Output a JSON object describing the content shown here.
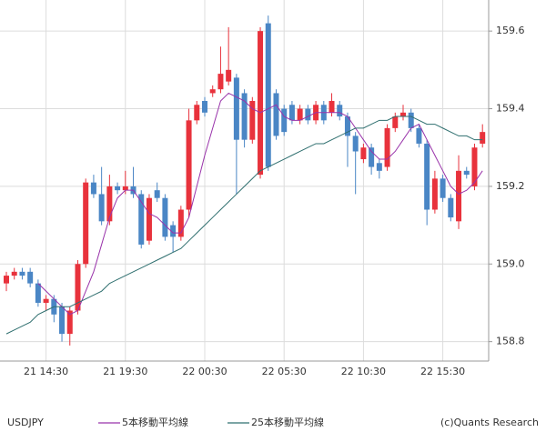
{
  "chart_data": {
    "type": "candlestick",
    "symbol": "USDJPY",
    "credit": "(c)Quants Research",
    "categories": [
      null,
      null,
      null,
      null,
      null,
      "21 14:30",
      null,
      null,
      null,
      null,
      null,
      null,
      null,
      null,
      null,
      "21 19:30",
      null,
      null,
      null,
      null,
      null,
      null,
      null,
      null,
      null,
      "22 00:30",
      null,
      null,
      null,
      null,
      null,
      null,
      null,
      null,
      null,
      "22 05:30",
      null,
      null,
      null,
      null,
      null,
      null,
      null,
      null,
      null,
      "22 10:30",
      null,
      null,
      null,
      null,
      null,
      null,
      null,
      null,
      null,
      "22 15:30",
      null,
      null,
      null,
      null,
      null
    ],
    "open": [
      158.95,
      158.97,
      158.98,
      158.98,
      158.95,
      158.9,
      158.91,
      158.89,
      158.82,
      158.88,
      159.0,
      159.21,
      159.18,
      159.11,
      159.2,
      159.19,
      159.2,
      159.18,
      159.06,
      159.19,
      159.17,
      159.1,
      159.07,
      159.14,
      159.37,
      159.42,
      159.44,
      159.45,
      159.47,
      159.48,
      159.44,
      159.32,
      159.23,
      159.62,
      159.44,
      159.4,
      159.41,
      159.37,
      159.4,
      159.37,
      159.41,
      159.39,
      159.41,
      159.38,
      159.33,
      159.27,
      159.3,
      159.26,
      159.25,
      159.35,
      159.38,
      159.39,
      159.35,
      159.31,
      159.14,
      159.22,
      159.17,
      159.11,
      159.24,
      159.2,
      159.31
    ],
    "high": [
      158.98,
      158.99,
      158.99,
      158.99,
      158.96,
      158.92,
      158.92,
      158.9,
      158.89,
      159.01,
      159.22,
      159.23,
      159.25,
      159.23,
      159.21,
      159.24,
      159.25,
      159.19,
      159.18,
      159.21,
      159.18,
      159.11,
      159.15,
      159.4,
      159.42,
      159.43,
      159.46,
      159.56,
      159.61,
      159.49,
      159.45,
      159.43,
      159.61,
      159.64,
      159.45,
      159.41,
      159.42,
      159.41,
      159.41,
      159.42,
      159.42,
      159.44,
      159.42,
      159.39,
      159.34,
      159.31,
      159.31,
      159.27,
      159.36,
      159.39,
      159.41,
      159.4,
      159.36,
      159.32,
      159.24,
      159.23,
      159.18,
      159.28,
      159.25,
      159.31,
      159.36
    ],
    "low": [
      158.93,
      158.96,
      158.96,
      158.94,
      158.89,
      158.88,
      158.85,
      158.8,
      158.79,
      158.87,
      158.99,
      159.17,
      159.1,
      159.1,
      159.18,
      159.18,
      159.17,
      159.04,
      159.05,
      159.16,
      159.06,
      159.03,
      159.06,
      159.12,
      159.36,
      159.38,
      159.43,
      159.44,
      159.46,
      159.18,
      159.3,
      159.31,
      159.22,
      159.24,
      159.32,
      159.33,
      159.36,
      159.36,
      159.36,
      159.36,
      159.36,
      159.38,
      159.37,
      159.25,
      159.18,
      159.26,
      159.23,
      159.22,
      159.24,
      159.34,
      159.37,
      159.34,
      159.3,
      159.1,
      159.13,
      159.16,
      159.11,
      159.09,
      159.22,
      159.19,
      159.3
    ],
    "close": [
      158.97,
      158.98,
      158.97,
      158.95,
      158.9,
      158.91,
      158.87,
      158.82,
      158.88,
      159.0,
      159.21,
      159.18,
      159.11,
      159.2,
      159.19,
      159.2,
      159.18,
      159.05,
      159.17,
      159.17,
      159.07,
      159.07,
      159.14,
      159.37,
      159.41,
      159.39,
      159.45,
      159.49,
      159.5,
      159.32,
      159.32,
      159.42,
      159.6,
      159.25,
      159.33,
      159.34,
      159.37,
      159.4,
      159.37,
      159.41,
      159.37,
      159.42,
      159.38,
      159.33,
      159.29,
      159.3,
      159.25,
      159.24,
      159.35,
      159.38,
      159.39,
      159.35,
      159.31,
      159.14,
      159.22,
      159.17,
      159.12,
      159.24,
      159.23,
      159.3,
      159.34
    ],
    "up_color": "#e8323c",
    "down_color": "#4a86c5",
    "series": [
      {
        "name": "5本移動平均線",
        "color": "#9933aa",
        "values": [
          null,
          null,
          null,
          null,
          158.95,
          158.93,
          158.91,
          158.89,
          158.87,
          158.88,
          158.93,
          158.98,
          159.05,
          159.12,
          159.17,
          159.19,
          159.19,
          159.16,
          159.13,
          159.12,
          159.1,
          159.08,
          159.08,
          159.12,
          159.2,
          159.28,
          159.35,
          159.42,
          159.44,
          159.43,
          159.42,
          159.4,
          159.39,
          159.4,
          159.41,
          159.38,
          159.37,
          159.37,
          159.38,
          159.39,
          159.39,
          159.39,
          159.39,
          159.38,
          159.35,
          159.32,
          159.29,
          159.27,
          159.27,
          159.29,
          159.32,
          159.35,
          159.36,
          159.32,
          159.28,
          159.24,
          159.2,
          159.18,
          159.19,
          159.21,
          159.24
        ]
      },
      {
        "name": "25本移動平均線",
        "color": "#2f6f6f",
        "values": [
          158.82,
          158.83,
          158.84,
          158.85,
          158.87,
          158.88,
          158.89,
          158.89,
          158.89,
          158.9,
          158.91,
          158.92,
          158.93,
          158.95,
          158.96,
          158.97,
          158.98,
          158.99,
          159.0,
          159.01,
          159.02,
          159.03,
          159.04,
          159.06,
          159.08,
          159.1,
          159.12,
          159.14,
          159.16,
          159.18,
          159.2,
          159.22,
          159.24,
          159.25,
          159.26,
          159.27,
          159.28,
          159.29,
          159.3,
          159.31,
          159.31,
          159.32,
          159.33,
          159.34,
          159.35,
          159.35,
          159.36,
          159.37,
          159.37,
          159.38,
          159.38,
          159.38,
          159.37,
          159.36,
          159.36,
          159.35,
          159.34,
          159.33,
          159.33,
          159.32,
          159.32
        ]
      }
    ],
    "ylim": [
      158.75,
      159.68
    ],
    "yticks": [
      158.8,
      {
        "value": 159,
        "label": "159.0"
      },
      159.2,
      159.4,
      159.6
    ],
    "grid": true
  }
}
